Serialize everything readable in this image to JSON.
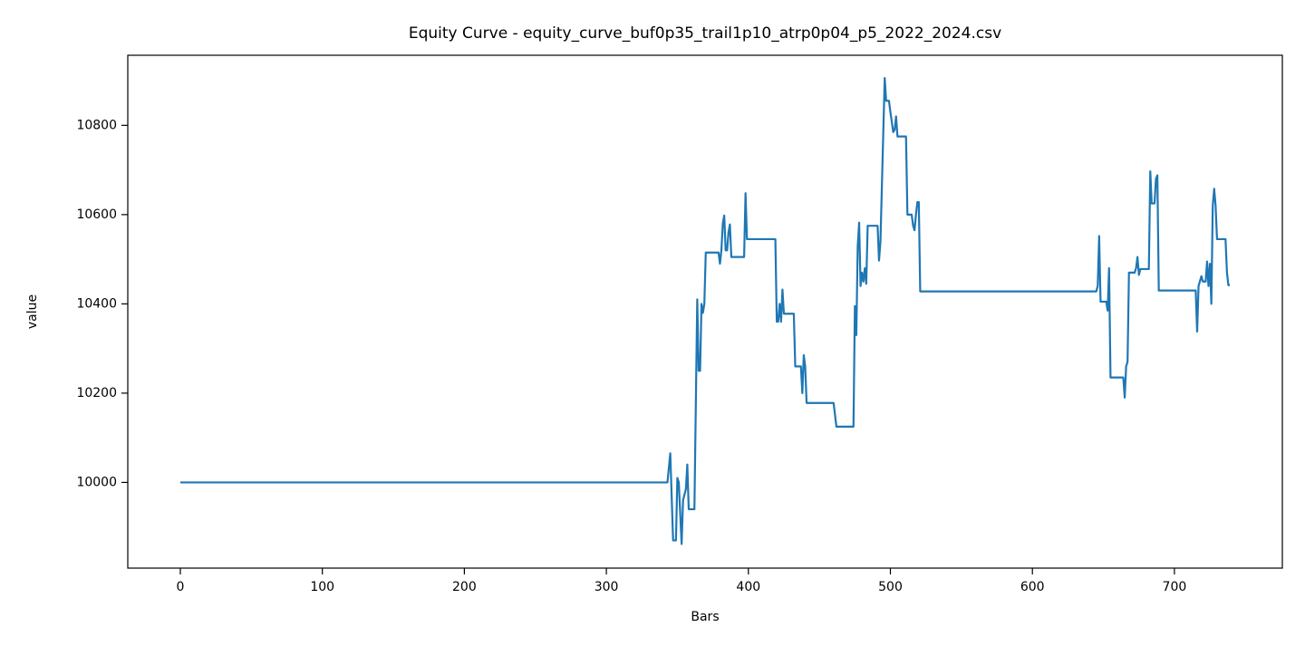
{
  "chart_data": {
    "type": "line",
    "title": "Equity Curve - equity_curve_buf0p35_trail1p10_atrp0p04_p5_2022_2024.csv",
    "xlabel": "Bars",
    "ylabel": "value",
    "xlim": [
      -37,
      776
    ],
    "ylim": [
      9808,
      10957
    ],
    "xticks": [
      0,
      100,
      200,
      300,
      400,
      500,
      600,
      700
    ],
    "yticks": [
      10000,
      10200,
      10400,
      10600,
      10800
    ],
    "grid": false,
    "series": [
      {
        "color": "#1f77b4",
        "x": [
          0,
          343,
          345,
          347,
          349,
          350,
          351,
          353,
          354,
          356,
          357,
          358,
          362,
          364,
          365,
          366,
          367,
          368,
          369,
          370,
          379,
          380,
          381,
          382,
          383,
          384,
          385,
          386,
          387,
          388,
          397,
          398,
          399,
          419,
          420,
          421,
          422,
          423,
          424,
          425,
          432,
          433,
          437,
          438,
          439,
          440,
          441,
          460,
          462,
          474,
          475,
          476,
          477,
          478,
          479,
          480,
          481,
          482,
          483,
          484,
          491,
          492,
          493,
          496,
          497,
          499,
          500,
          502,
          503,
          504,
          505,
          511,
          512,
          515,
          516,
          517,
          518,
          519,
          520,
          521,
          645,
          646,
          647,
          648,
          652,
          653,
          654,
          655,
          664,
          665,
          666,
          667,
          668,
          672,
          673,
          674,
          675,
          676,
          682,
          683,
          684,
          686,
          687,
          688,
          689,
          715,
          716,
          717,
          719,
          720,
          722,
          723,
          724,
          725,
          726,
          727,
          728,
          729,
          730,
          736,
          737,
          738,
          739
        ],
        "values": [
          10000,
          10000,
          10065,
          9870,
          9870,
          10010,
          10000,
          9862,
          9960,
          9985,
          10040,
          9940,
          9940,
          10410,
          10250,
          10250,
          10400,
          10380,
          10400,
          10515,
          10515,
          10490,
          10520,
          10580,
          10598,
          10520,
          10520,
          10560,
          10578,
          10505,
          10505,
          10648,
          10545,
          10545,
          10360,
          10360,
          10400,
          10360,
          10432,
          10378,
          10378,
          10260,
          10260,
          10200,
          10285,
          10260,
          10178,
          10178,
          10125,
          10125,
          10395,
          10330,
          10530,
          10582,
          10440,
          10470,
          10450,
          10480,
          10445,
          10575,
          10575,
          10497,
          10540,
          10906,
          10855,
          10855,
          10830,
          10785,
          10790,
          10820,
          10775,
          10775,
          10600,
          10600,
          10575,
          10565,
          10600,
          10628,
          10628,
          10428,
          10428,
          10440,
          10552,
          10405,
          10405,
          10385,
          10480,
          10235,
          10235,
          10190,
          10260,
          10270,
          10470,
          10470,
          10480,
          10505,
          10465,
          10478,
          10478,
          10697,
          10625,
          10625,
          10680,
          10688,
          10430,
          10430,
          10338,
          10440,
          10462,
          10450,
          10450,
          10495,
          10440,
          10490,
          10400,
          10620,
          10658,
          10620,
          10545,
          10545,
          10470,
          10442,
          10442
        ]
      }
    ]
  }
}
